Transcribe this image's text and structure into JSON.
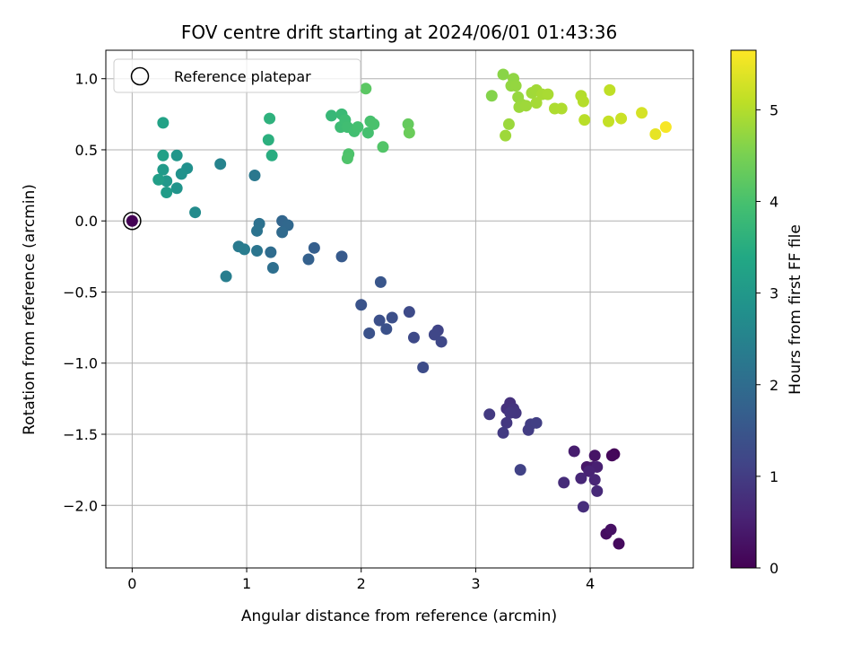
{
  "chart_data": {
    "type": "scatter",
    "title": "FOV centre drift starting at 2024/06/01 01:43:36",
    "xlabel": "Angular distance from reference (arcmin)",
    "ylabel": "Rotation from reference (arcmin)",
    "xlim": [
      -0.23,
      4.9
    ],
    "ylim": [
      -2.44,
      1.2
    ],
    "xticks": [
      0,
      1,
      2,
      3,
      4
    ],
    "xtick_labels": [
      "0",
      "1",
      "2",
      "3",
      "4"
    ],
    "yticks": [
      -2.0,
      -1.5,
      -1.0,
      -0.5,
      0.0,
      0.5,
      1.0
    ],
    "ytick_labels": [
      "−2.0",
      "−1.5",
      "−1.0",
      "−0.5",
      "0.0",
      "0.5",
      "1.0"
    ],
    "grid": true,
    "legend": {
      "placement": "top-left",
      "entries": [
        "Reference platepar"
      ]
    },
    "colorbar": {
      "label": "Hours from first FF file",
      "colormap": "viridis",
      "range": [
        0,
        5.65
      ],
      "ticks": [
        0,
        1,
        2,
        3,
        4,
        5
      ],
      "tick_labels": [
        "0",
        "1",
        "2",
        "3",
        "4",
        "5"
      ]
    },
    "reference_point": {
      "x": 0,
      "y": 0,
      "c": 0.02
    },
    "points": [
      {
        "x": 4.21,
        "y": -1.64,
        "c": 0.05
      },
      {
        "x": 4.19,
        "y": -1.65,
        "c": 0.1
      },
      {
        "x": 4.25,
        "y": -2.27,
        "c": 0.15
      },
      {
        "x": 4.14,
        "y": -2.2,
        "c": 0.2
      },
      {
        "x": 4.18,
        "y": -2.17,
        "c": 0.25
      },
      {
        "x": 4.04,
        "y": -1.65,
        "c": 0.3
      },
      {
        "x": 3.97,
        "y": -1.73,
        "c": 0.35
      },
      {
        "x": 4.03,
        "y": -1.73,
        "c": 0.4
      },
      {
        "x": 3.86,
        "y": -1.62,
        "c": 0.45
      },
      {
        "x": 4.06,
        "y": -1.73,
        "c": 0.5
      },
      {
        "x": 3.99,
        "y": -1.76,
        "c": 0.55
      },
      {
        "x": 4.04,
        "y": -1.82,
        "c": 0.6
      },
      {
        "x": 3.92,
        "y": -1.81,
        "c": 0.62
      },
      {
        "x": 4.06,
        "y": -1.9,
        "c": 0.65
      },
      {
        "x": 3.77,
        "y": -1.84,
        "c": 0.7
      },
      {
        "x": 3.94,
        "y": -2.01,
        "c": 0.75
      },
      {
        "x": 3.3,
        "y": -1.28,
        "c": 0.8
      },
      {
        "x": 3.27,
        "y": -1.32,
        "c": 0.82
      },
      {
        "x": 3.33,
        "y": -1.32,
        "c": 0.85
      },
      {
        "x": 3.35,
        "y": -1.35,
        "c": 0.88
      },
      {
        "x": 3.3,
        "y": -1.35,
        "c": 0.9
      },
      {
        "x": 3.27,
        "y": -1.42,
        "c": 0.92
      },
      {
        "x": 3.12,
        "y": -1.36,
        "c": 0.95
      },
      {
        "x": 3.24,
        "y": -1.49,
        "c": 0.97
      },
      {
        "x": 3.46,
        "y": -1.47,
        "c": 1.0
      },
      {
        "x": 3.48,
        "y": -1.43,
        "c": 1.02
      },
      {
        "x": 3.53,
        "y": -1.42,
        "c": 1.05
      },
      {
        "x": 3.39,
        "y": -1.75,
        "c": 1.1
      },
      {
        "x": 2.67,
        "y": -0.77,
        "c": 1.15
      },
      {
        "x": 2.64,
        "y": -0.8,
        "c": 1.2
      },
      {
        "x": 2.7,
        "y": -0.85,
        "c": 1.22
      },
      {
        "x": 2.46,
        "y": -0.82,
        "c": 1.25
      },
      {
        "x": 2.42,
        "y": -0.64,
        "c": 1.28
      },
      {
        "x": 2.54,
        "y": -1.03,
        "c": 1.3
      },
      {
        "x": 2.27,
        "y": -0.68,
        "c": 1.35
      },
      {
        "x": 2.16,
        "y": -0.7,
        "c": 1.38
      },
      {
        "x": 2.22,
        "y": -0.76,
        "c": 1.4
      },
      {
        "x": 2.07,
        "y": -0.79,
        "c": 1.42
      },
      {
        "x": 2.0,
        "y": -0.59,
        "c": 1.45
      },
      {
        "x": 2.17,
        "y": -0.43,
        "c": 1.5
      },
      {
        "x": 1.83,
        "y": -0.25,
        "c": 1.6
      },
      {
        "x": 1.59,
        "y": -0.19,
        "c": 1.7
      },
      {
        "x": 1.54,
        "y": -0.27,
        "c": 1.75
      },
      {
        "x": 1.31,
        "y": 0.0,
        "c": 1.85
      },
      {
        "x": 1.36,
        "y": -0.03,
        "c": 1.9
      },
      {
        "x": 1.31,
        "y": -0.08,
        "c": 1.95
      },
      {
        "x": 1.21,
        "y": -0.22,
        "c": 2.0
      },
      {
        "x": 1.23,
        "y": -0.33,
        "c": 2.05
      },
      {
        "x": 1.11,
        "y": -0.02,
        "c": 2.1
      },
      {
        "x": 1.09,
        "y": -0.07,
        "c": 2.15
      },
      {
        "x": 1.09,
        "y": -0.21,
        "c": 2.2
      },
      {
        "x": 1.07,
        "y": 0.32,
        "c": 2.25
      },
      {
        "x": 0.93,
        "y": -0.18,
        "c": 2.3
      },
      {
        "x": 0.98,
        "y": -0.2,
        "c": 2.35
      },
      {
        "x": 0.82,
        "y": -0.39,
        "c": 2.4
      },
      {
        "x": 0.77,
        "y": 0.4,
        "c": 2.5
      },
      {
        "x": 0.55,
        "y": 0.06,
        "c": 2.7
      },
      {
        "x": 0.48,
        "y": 0.37,
        "c": 2.8
      },
      {
        "x": 0.43,
        "y": 0.33,
        "c": 2.85
      },
      {
        "x": 0.39,
        "y": 0.23,
        "c": 2.9
      },
      {
        "x": 0.39,
        "y": 0.46,
        "c": 2.95
      },
      {
        "x": 0.3,
        "y": 0.28,
        "c": 3.0
      },
      {
        "x": 0.27,
        "y": 0.36,
        "c": 3.05
      },
      {
        "x": 0.3,
        "y": 0.2,
        "c": 3.1
      },
      {
        "x": 0.23,
        "y": 0.29,
        "c": 3.15
      },
      {
        "x": 0.27,
        "y": 0.46,
        "c": 3.2
      },
      {
        "x": 0.27,
        "y": 0.69,
        "c": 3.25
      },
      {
        "x": 1.22,
        "y": 0.46,
        "c": 3.5
      },
      {
        "x": 1.19,
        "y": 0.57,
        "c": 3.55
      },
      {
        "x": 1.2,
        "y": 0.72,
        "c": 3.6
      },
      {
        "x": 1.74,
        "y": 0.74,
        "c": 3.75
      },
      {
        "x": 1.83,
        "y": 0.75,
        "c": 3.8
      },
      {
        "x": 1.82,
        "y": 0.66,
        "c": 3.85
      },
      {
        "x": 1.86,
        "y": 0.71,
        "c": 3.87
      },
      {
        "x": 1.88,
        "y": 0.66,
        "c": 3.9
      },
      {
        "x": 1.94,
        "y": 0.63,
        "c": 3.92
      },
      {
        "x": 1.97,
        "y": 0.66,
        "c": 3.95
      },
      {
        "x": 2.06,
        "y": 0.62,
        "c": 3.97
      },
      {
        "x": 2.08,
        "y": 0.7,
        "c": 4.0
      },
      {
        "x": 2.11,
        "y": 0.68,
        "c": 4.02
      },
      {
        "x": 1.89,
        "y": 0.47,
        "c": 4.05
      },
      {
        "x": 1.88,
        "y": 0.44,
        "c": 4.07
      },
      {
        "x": 2.19,
        "y": 0.52,
        "c": 4.1
      },
      {
        "x": 2.04,
        "y": 0.93,
        "c": 4.2
      },
      {
        "x": 2.41,
        "y": 0.68,
        "c": 4.3
      },
      {
        "x": 2.42,
        "y": 0.62,
        "c": 4.35
      },
      {
        "x": 3.14,
        "y": 0.88,
        "c": 4.6
      },
      {
        "x": 3.24,
        "y": 1.03,
        "c": 4.65
      },
      {
        "x": 3.33,
        "y": 1.0,
        "c": 4.7
      },
      {
        "x": 3.31,
        "y": 0.95,
        "c": 4.72
      },
      {
        "x": 3.35,
        "y": 0.95,
        "c": 4.74
      },
      {
        "x": 3.37,
        "y": 0.87,
        "c": 4.76
      },
      {
        "x": 3.4,
        "y": 0.82,
        "c": 4.78
      },
      {
        "x": 3.38,
        "y": 0.8,
        "c": 4.8
      },
      {
        "x": 3.44,
        "y": 0.81,
        "c": 4.82
      },
      {
        "x": 3.49,
        "y": 0.9,
        "c": 4.84
      },
      {
        "x": 3.53,
        "y": 0.92,
        "c": 4.86
      },
      {
        "x": 3.53,
        "y": 0.83,
        "c": 4.88
      },
      {
        "x": 3.58,
        "y": 0.89,
        "c": 4.9
      },
      {
        "x": 3.63,
        "y": 0.89,
        "c": 4.92
      },
      {
        "x": 3.69,
        "y": 0.79,
        "c": 4.95
      },
      {
        "x": 3.75,
        "y": 0.79,
        "c": 4.97
      },
      {
        "x": 3.29,
        "y": 0.68,
        "c": 4.8
      },
      {
        "x": 3.26,
        "y": 0.6,
        "c": 4.82
      },
      {
        "x": 3.92,
        "y": 0.88,
        "c": 5.0
      },
      {
        "x": 3.94,
        "y": 0.84,
        "c": 5.02
      },
      {
        "x": 3.95,
        "y": 0.71,
        "c": 5.05
      },
      {
        "x": 4.17,
        "y": 0.92,
        "c": 5.1
      },
      {
        "x": 4.16,
        "y": 0.7,
        "c": 5.15
      },
      {
        "x": 4.27,
        "y": 0.72,
        "c": 5.2
      },
      {
        "x": 4.45,
        "y": 0.76,
        "c": 5.3
      },
      {
        "x": 4.57,
        "y": 0.61,
        "c": 5.45
      },
      {
        "x": 4.66,
        "y": 0.66,
        "c": 5.6
      }
    ]
  }
}
